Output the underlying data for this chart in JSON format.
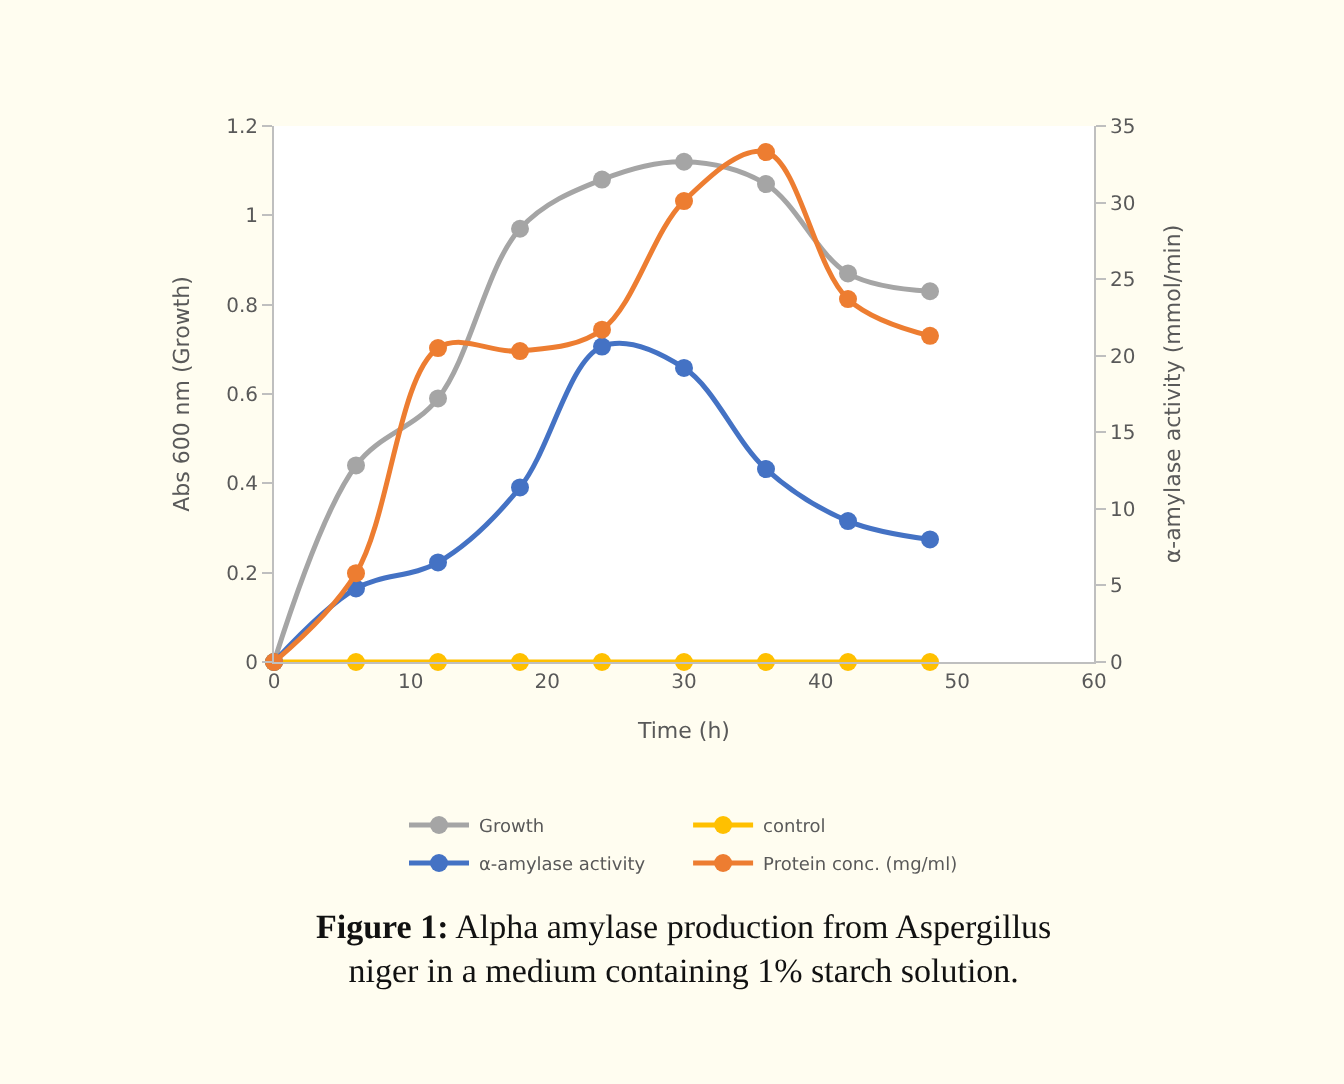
{
  "chart_data": {
    "type": "line",
    "xlabel": "Time (h)",
    "ylabel": "Abs 600 nm (Growth)",
    "y2label": "α-amylase activity (mmol/min)",
    "x": [
      0,
      6,
      12,
      18,
      24,
      30,
      36,
      42,
      48
    ],
    "series": [
      {
        "name": "Growth",
        "color": "#a5a5a5",
        "values": [
          0,
          0.44,
          0.59,
          0.97,
          1.08,
          1.12,
          1.07,
          0.87,
          0.83
        ]
      },
      {
        "name": "control",
        "color": "#ffc000",
        "values": [
          0,
          0,
          0,
          0,
          0,
          0,
          0,
          0,
          0
        ]
      },
      {
        "name": "α-amylase activity",
        "color": "#4472c4",
        "axis": "y2",
        "values": [
          0,
          4.8,
          6.5,
          11.4,
          20.6,
          19.2,
          12.6,
          9.2,
          8.0
        ]
      },
      {
        "name": "Protein conc. (mg/ml)",
        "color": "#ed7d31",
        "axis": "y2",
        "values": [
          0,
          5.8,
          20.5,
          20.3,
          21.7,
          30.1,
          33.3,
          23.7,
          21.3
        ]
      }
    ],
    "xlim": [
      0,
      60
    ],
    "xticks": [
      0,
      10,
      20,
      30,
      40,
      50,
      60
    ],
    "ylim": [
      0,
      1.2
    ],
    "yticks": [
      0,
      0.2,
      0.4,
      0.6,
      0.8,
      1,
      1.2
    ],
    "y2lim": [
      0,
      35
    ],
    "y2ticks": [
      0,
      5,
      10,
      15,
      20,
      25,
      30,
      35
    ],
    "legend": "bottom",
    "marker": "circle",
    "line_style": "solid",
    "annotations": [
      "Figure 1: Alpha amylase production from Aspergillus niger in a medium containing 1% starch solution."
    ]
  }
}
